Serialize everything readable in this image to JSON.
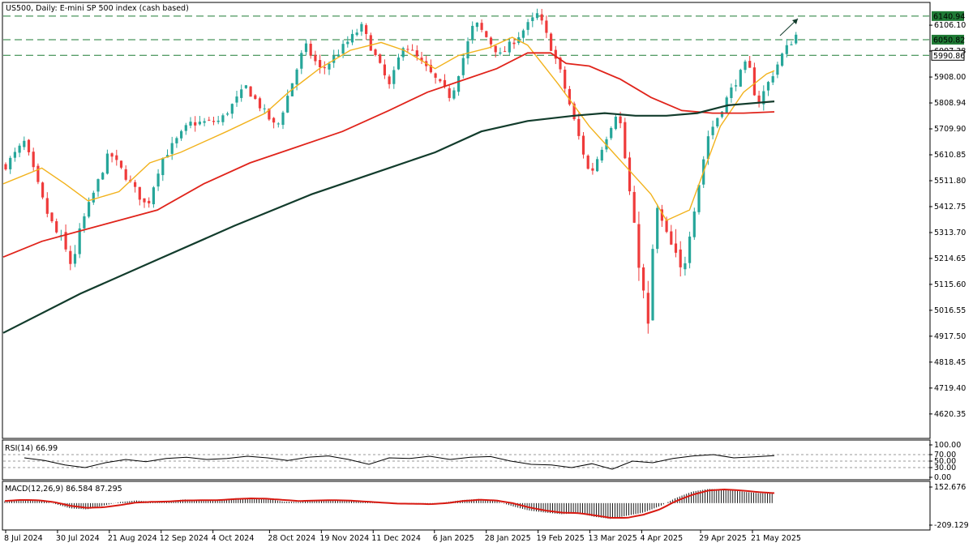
{
  "header": {
    "title": "US500, Daily:  E-mini SP 500 index (cash based)"
  },
  "colors": {
    "bull": "#26a69a",
    "bear": "#ef3b3b",
    "ma_fast": "#f2b21c",
    "ma_mid": "#e0241b",
    "ma_slow": "#123c2c",
    "level_line": "#1e7b35",
    "level_label_bg": "#1f7a35",
    "rsi_line": "#000000",
    "macd_signal": "#d81a12",
    "macd_hist": "#000000"
  },
  "chart_data": [
    {
      "type": "candlestick",
      "title": "US500, Daily:  E-mini SP 500 index (cash based)",
      "ylim": [
        4530,
        6190
      ],
      "y_ticks": [
        "6106.10",
        "6007.38",
        "5908.00",
        "5808.94",
        "5709.90",
        "5610.85",
        "5511.80",
        "5412.75",
        "5313.70",
        "5214.65",
        "5115.60",
        "5016.55",
        "4917.50",
        "4818.45",
        "4719.40",
        "4620.35"
      ],
      "x_ticks": [
        "8 Jul 2024",
        "30 Jul 2024",
        "21 Aug 2024",
        "12 Sep 2024",
        "4 Oct 2024",
        "28 Oct 2024",
        "19 Nov 2024",
        "11 Dec 2024",
        "6 Jan 2025",
        "28 Jan 2025",
        "19 Feb 2025",
        "13 Mar 2025",
        "4 Apr 2025",
        "29 Apr 2025",
        "21 May 2025"
      ],
      "levels": [
        {
          "value": 6140.94,
          "label": "6140.94",
          "highlight": true
        },
        {
          "value": 6050.82,
          "label": "6050.82",
          "highlight": true
        },
        {
          "value": 5990.86,
          "label": "5990.86",
          "highlight": false
        }
      ],
      "close_path": [
        [
          "8 Jul 2024",
          5570
        ],
        [
          "16 Jul 2024",
          5660
        ],
        [
          "25 Jul 2024",
          5400
        ],
        [
          "5 Aug 2024",
          5190
        ],
        [
          "9 Aug 2024",
          5340
        ],
        [
          "21 Aug 2024",
          5620
        ],
        [
          "6 Sep 2024",
          5410
        ],
        [
          "12 Sep 2024",
          5590
        ],
        [
          "24 Sep 2024",
          5730
        ],
        [
          "7 Oct 2024",
          5740
        ],
        [
          "18 Oct 2024",
          5870
        ],
        [
          "31 Oct 2024",
          5710
        ],
        [
          "12 Nov 2024",
          6030
        ],
        [
          "19 Nov 2024",
          5930
        ],
        [
          "6 Dec 2024",
          6100
        ],
        [
          "18 Dec 2024",
          5870
        ],
        [
          "24 Dec 2024",
          6040
        ],
        [
          "13 Jan 2025",
          5830
        ],
        [
          "23 Jan 2025",
          6120
        ],
        [
          "3 Feb 2025",
          5990
        ],
        [
          "19 Feb 2025",
          6150
        ],
        [
          "28 Feb 2025",
          5940
        ],
        [
          "13 Mar 2025",
          5530
        ],
        [
          "25 Mar 2025",
          5790
        ],
        [
          "8 Apr 2025",
          4860
        ],
        [
          "9 Apr 2025",
          5440
        ],
        [
          "21 Apr 2025",
          5150
        ],
        [
          "2 May 2025",
          5680
        ],
        [
          "12 May 2025",
          5860
        ],
        [
          "19 May 2025",
          5970
        ],
        [
          "23 May 2025",
          5800
        ],
        [
          "3 Jun 2025",
          6000
        ],
        [
          "9 Jun 2025",
          6075
        ]
      ],
      "moving_averages": [
        {
          "role": "fast",
          "points": [
            [
              0,
              5500
            ],
            [
              0.05,
              5560
            ],
            [
              0.08,
              5500
            ],
            [
              0.11,
              5435
            ],
            [
              0.15,
              5470
            ],
            [
              0.19,
              5580
            ],
            [
              0.23,
              5620
            ],
            [
              0.29,
              5700
            ],
            [
              0.34,
              5770
            ],
            [
              0.37,
              5850
            ],
            [
              0.41,
              5940
            ],
            [
              0.45,
              6010
            ],
            [
              0.49,
              6040
            ],
            [
              0.52,
              6010
            ],
            [
              0.56,
              5940
            ],
            [
              0.59,
              5990
            ],
            [
              0.63,
              6020
            ],
            [
              0.66,
              6060
            ],
            [
              0.68,
              6030
            ],
            [
              0.72,
              5880
            ],
            [
              0.76,
              5720
            ],
            [
              0.8,
              5590
            ],
            [
              0.84,
              5460
            ],
            [
              0.86,
              5360
            ],
            [
              0.89,
              5400
            ],
            [
              0.91,
              5560
            ],
            [
              0.93,
              5720
            ],
            [
              0.96,
              5850
            ],
            [
              0.99,
              5920
            ],
            [
              1,
              5932
            ]
          ]
        },
        {
          "role": "mid",
          "points": [
            [
              0,
              5220
            ],
            [
              0.05,
              5280
            ],
            [
              0.1,
              5320
            ],
            [
              0.15,
              5360
            ],
            [
              0.2,
              5400
            ],
            [
              0.26,
              5500
            ],
            [
              0.32,
              5580
            ],
            [
              0.38,
              5640
            ],
            [
              0.44,
              5700
            ],
            [
              0.5,
              5780
            ],
            [
              0.55,
              5850
            ],
            [
              0.6,
              5900
            ],
            [
              0.64,
              5940
            ],
            [
              0.68,
              6000
            ],
            [
              0.71,
              6000
            ],
            [
              0.73,
              5960
            ],
            [
              0.76,
              5950
            ],
            [
              0.8,
              5900
            ],
            [
              0.84,
              5830
            ],
            [
              0.88,
              5780
            ],
            [
              0.92,
              5770
            ],
            [
              0.96,
              5770
            ],
            [
              1,
              5775
            ]
          ]
        },
        {
          "role": "slow",
          "points": [
            [
              0,
              4930
            ],
            [
              0.1,
              5080
            ],
            [
              0.2,
              5210
            ],
            [
              0.3,
              5340
            ],
            [
              0.4,
              5460
            ],
            [
              0.5,
              5560
            ],
            [
              0.56,
              5620
            ],
            [
              0.62,
              5700
            ],
            [
              0.68,
              5740
            ],
            [
              0.74,
              5760
            ],
            [
              0.78,
              5770
            ],
            [
              0.82,
              5760
            ],
            [
              0.86,
              5760
            ],
            [
              0.9,
              5770
            ],
            [
              0.94,
              5800
            ],
            [
              1,
              5815
            ]
          ]
        }
      ]
    },
    {
      "type": "line",
      "title": "RSI(14) 66.99",
      "ylim": [
        0,
        100
      ],
      "y_ticks": [
        "100.00",
        "70.00",
        "50.00",
        "30.00",
        "0.00"
      ],
      "series": [
        {
          "values": [
            60,
            52,
            38,
            30,
            45,
            55,
            48,
            58,
            62,
            55,
            58,
            65,
            60,
            52,
            62,
            66,
            55,
            40,
            60,
            58,
            65,
            55,
            62,
            64,
            50,
            40,
            38,
            30,
            42,
            25,
            50,
            45,
            58,
            66,
            70,
            60,
            63,
            67
          ]
        }
      ]
    },
    {
      "type": "bar",
      "title": "MACD(12,26,9) 86.584 87.295",
      "ylim": [
        -209.129,
        152.676
      ],
      "y_ticks": [
        "152.676",
        "-209.129"
      ],
      "series": [
        {
          "values": [
            20,
            35,
            30,
            -5,
            -50,
            -60,
            -25,
            10,
            25,
            15,
            20,
            35,
            25,
            30,
            45,
            50,
            40,
            15,
            10,
            30,
            30,
            20,
            10,
            0,
            -10,
            -5,
            -15,
            10,
            30,
            40,
            20,
            -30,
            -70,
            -90,
            -105,
            -95,
            -130,
            -150,
            -120,
            -90,
            -30,
            50,
            110,
            135,
            130,
            110,
            95,
            90
          ]
        },
        {
          "values": [
            20,
            30,
            28,
            10,
            -25,
            -45,
            -40,
            -20,
            5,
            12,
            15,
            25,
            27,
            28,
            38,
            45,
            42,
            30,
            20,
            25,
            28,
            25,
            15,
            5,
            -5,
            -6,
            -10,
            0,
            20,
            32,
            25,
            0,
            -40,
            -70,
            -90,
            -95,
            -115,
            -140,
            -140,
            -110,
            -60,
            20,
            80,
            120,
            130,
            120,
            105,
            95
          ]
        }
      ]
    }
  ]
}
